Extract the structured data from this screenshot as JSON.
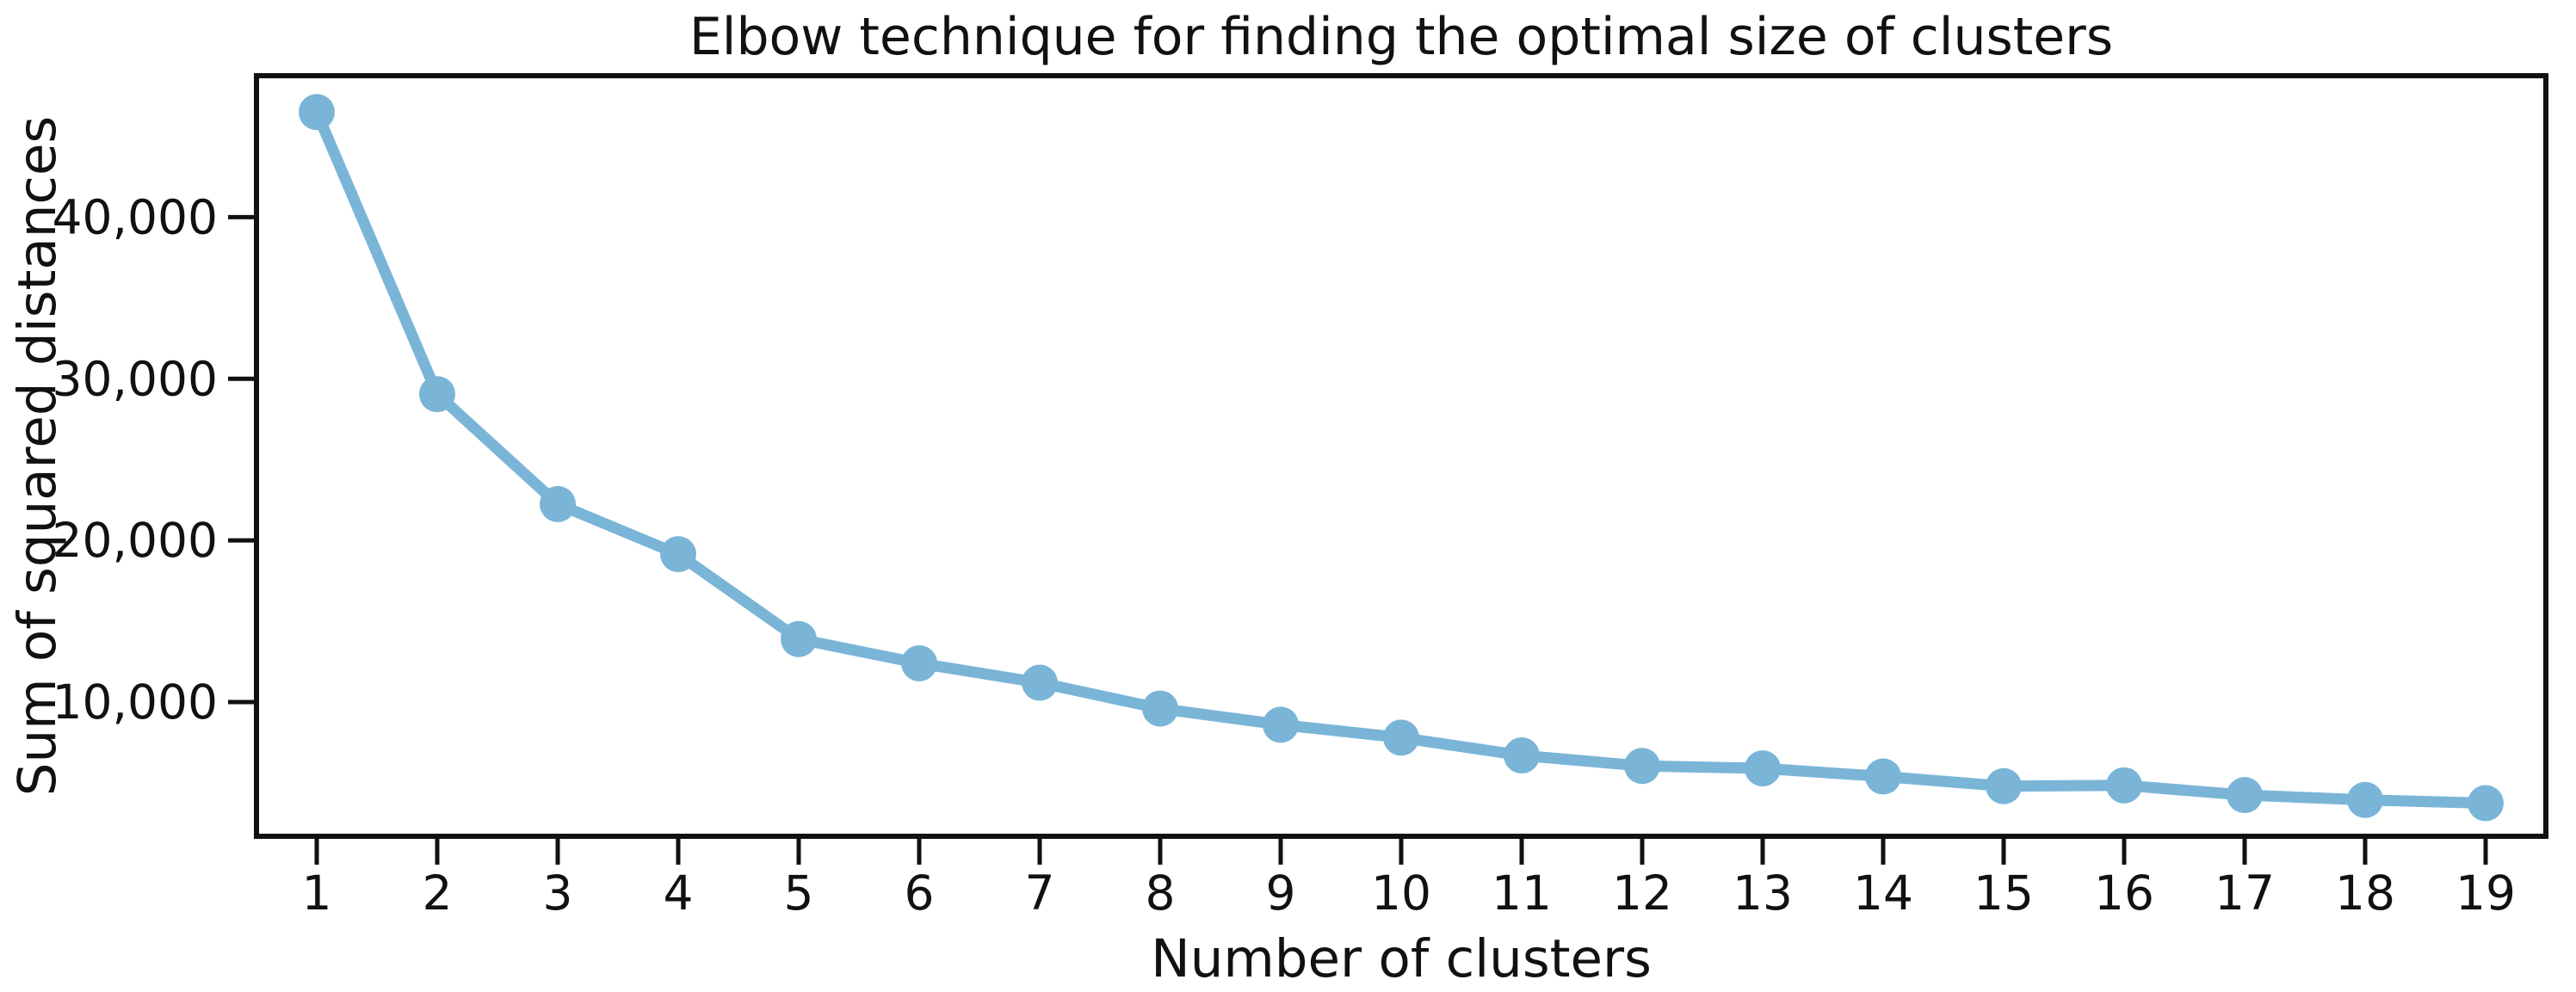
{
  "chart_data": {
    "type": "line",
    "title": "Elbow technique for finding the optimal size of clusters",
    "xlabel": "Number of clusters",
    "ylabel": "Sum of squared distances",
    "categories": [
      "1",
      "2",
      "3",
      "4",
      "5",
      "6",
      "7",
      "8",
      "9",
      "10",
      "11",
      "12",
      "13",
      "14",
      "15",
      "16",
      "17",
      "18",
      "19"
    ],
    "series": [
      {
        "name": "sum-of-squared-distances",
        "values": [
          46500,
          29050,
          22250,
          19150,
          13900,
          12400,
          11200,
          9600,
          8600,
          7800,
          6700,
          6050,
          5900,
          5400,
          4800,
          4850,
          4250,
          3950,
          3750
        ]
      }
    ],
    "ylim": [
      1700,
      48750
    ],
    "yticks": [
      10000,
      20000,
      30000,
      40000
    ],
    "ytick_labels": [
      "10,000",
      "20,000",
      "30,000",
      "40,000"
    ],
    "grid": "off",
    "legend": "none",
    "line_color": "#7ab5d8",
    "marker": "circle",
    "axis_color": "#111111",
    "background_color": "#ffffff"
  }
}
